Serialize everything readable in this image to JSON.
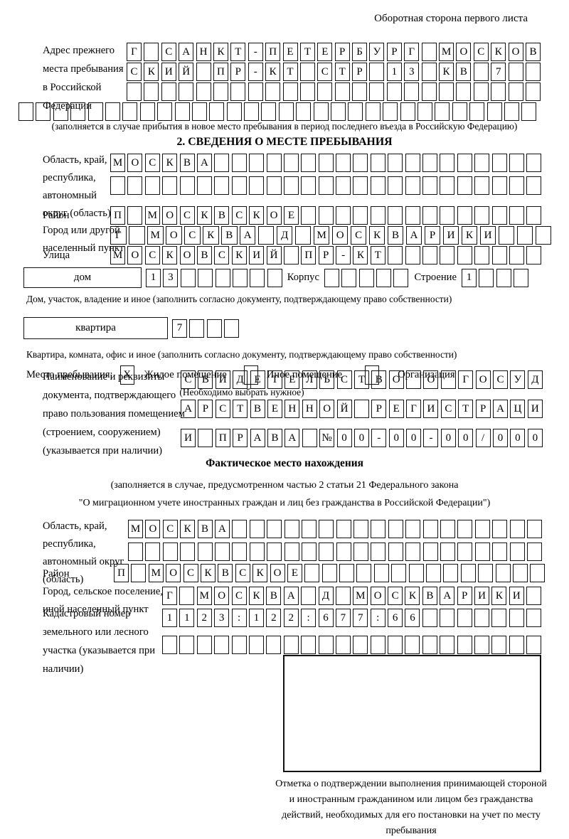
{
  "header_note": "Оборотная сторона первого листа",
  "prev_address": {
    "label": "Адрес прежнего места пребывания в Российской Федерации",
    "rows": [
      {
        "chars": "Г САНКТ-ПЕТЕРБУРГ МОСКОВ",
        "total": 24
      },
      {
        "chars": "СКИЙ ПР-КТ СТР 13 КВ 7",
        "total": 24
      },
      {
        "chars": "",
        "total": 24
      },
      {
        "chars": "",
        "total": 30
      }
    ],
    "note": "(заполняется в случае прибытия в новое место пребывания в период последнего въезда в Российскую Федерацию)"
  },
  "section2": {
    "title": "2. СВЕДЕНИЯ О МЕСТЕ ПРЕБЫВАНИЯ",
    "region": {
      "label": "Область, край, республика, автономный округ (область)",
      "rows": [
        {
          "chars": "МОСКВА",
          "total": 25
        },
        {
          "chars": "",
          "total": 25
        }
      ]
    },
    "district": {
      "label": "Район",
      "row": {
        "chars": "П МОСКВСКОЕ",
        "total": 25
      }
    },
    "city": {
      "label": "Город или другой населенный пункт",
      "row": {
        "chars": "Г МОСКВА Д МОСКВАРИКИ",
        "total": 24
      }
    },
    "street": {
      "label": "Улица",
      "row": {
        "chars": "МОСКОВСКИЙ ПР-КТ",
        "total": 25
      }
    },
    "house": {
      "box_label": "дом",
      "row": {
        "chars": "13",
        "total": 8
      },
      "korpus_label": "Корпус",
      "korpus_row": {
        "chars": "",
        "total": 5
      },
      "stroenie_label": "Строение",
      "stroenie_row": {
        "chars": "1",
        "total": 4
      },
      "note": "Дом, участок, владение и иное (заполнить согласно документу, подтверждающему право собственности)"
    },
    "apartment": {
      "box_label": "квартира",
      "row": {
        "chars": "7",
        "total": 4
      },
      "note": "Квартира, комната, офис и иное (заполнить согласно документу, подтверждающему право собственности)"
    },
    "stay_type": {
      "label": "Место пребывания:",
      "options": [
        {
          "label": "Жилое помещение",
          "mark": "X"
        },
        {
          "label": "Иное помещение",
          "mark": ""
        },
        {
          "label": "Организация",
          "mark": ""
        }
      ],
      "note": "(Необходимо выбрать нужное)"
    },
    "document": {
      "label": "Наименование и реквизиты документа, подтверждающего право пользования помещением (строением, сооружением) (указывается при наличии)",
      "rows": [
        {
          "chars": "СВИДЕТЕЛЬСТВО О ГОСУД",
          "total": 21
        },
        {
          "chars": "АРСТВЕННОЙ РЕГИСТРАЦИ",
          "total": 21
        },
        {
          "chars": "И ПРАВА №00-00-00/000",
          "total": 21
        }
      ]
    }
  },
  "actual_location": {
    "title": "Фактическое место нахождения",
    "note_line1": "(заполняется в случае, предусмотренном частью 2 статьи 21 Федерального закона",
    "note_line2": "\"О миграционном учете иностранных граждан и лиц без гражданства в Российской Федерации\")",
    "region": {
      "label": "Область, край, республика, автономный округ (область)",
      "rows": [
        {
          "chars": "МОСКВА",
          "total": 24
        },
        {
          "chars": "",
          "total": 24
        }
      ]
    },
    "district": {
      "label": "Район",
      "row": {
        "chars": "П МОСКВСКОЕ",
        "total": 25
      }
    },
    "city": {
      "label": "Город, сельское поселение, иной населенный пункт",
      "row": {
        "chars": "Г МОСКВА Д МОСКВАРИКИ",
        "total": 22
      }
    },
    "cadastral": {
      "label": "Кадастровый номер земельного или лесного участка (указывается при наличии)",
      "rows": [
        {
          "chars": "1123:122:677:66",
          "total": 22
        },
        {
          "chars": "",
          "total": 22
        }
      ]
    },
    "stamp_note": "Отметка о подтверждении выполнения принимающей стороной и иностранным гражданином или лицом без гражданства действий, необходимых для его постановки на учет по месту пребывания"
  }
}
